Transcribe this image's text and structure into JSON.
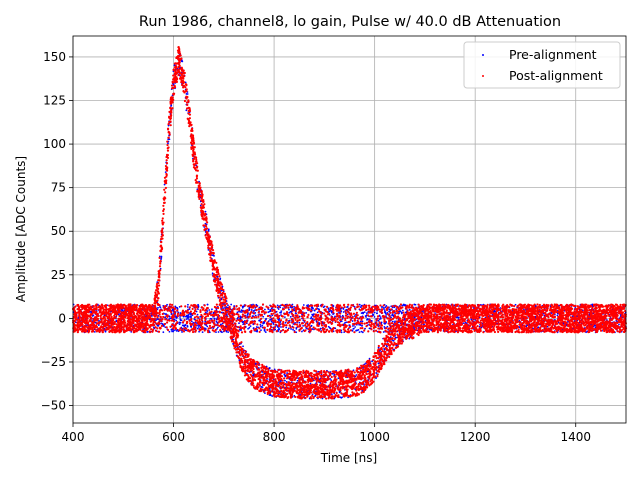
{
  "chart_data": {
    "type": "scatter",
    "title": "Run 1986, channel8, lo gain, Pulse w/ 40.0 dB Attenuation",
    "xlabel": "Time [ns]",
    "ylabel": "Amplitude [ADC Counts]",
    "xlim": [
      400,
      1500
    ],
    "ylim": [
      -60,
      162
    ],
    "xticks": [
      400,
      600,
      800,
      1000,
      1200,
      1400
    ],
    "yticks": [
      -50,
      -25,
      0,
      25,
      50,
      75,
      100,
      125,
      150
    ],
    "grid": true,
    "legend_position": "top-right",
    "series": [
      {
        "name": "Pre-alignment",
        "color": "#0000ff",
        "description_points": {
          "baseline": {
            "x_range": [
              400,
              1500
            ],
            "y_center": 0,
            "y_spread": 8
          },
          "pulse_track": {
            "x_range": [
              565,
              1080
            ],
            "y_spread": 8
          }
        }
      },
      {
        "name": "Post-alignment",
        "color": "#ff0000",
        "x": [
          400,
          560,
          570,
          580,
          590,
          600,
          610,
          620,
          630,
          640,
          650,
          660,
          670,
          680,
          690,
          700,
          710,
          720,
          730,
          740,
          760,
          780,
          800,
          840,
          880,
          920,
          960,
          980,
          1000,
          1020,
          1040,
          1060,
          1080,
          1100,
          1200,
          1300,
          1400,
          1500
        ],
        "y": [
          0,
          0,
          18,
          60,
          105,
          135,
          148,
          138,
          118,
          95,
          75,
          60,
          45,
          30,
          18,
          8,
          0,
          -8,
          -18,
          -25,
          -32,
          -35,
          -37,
          -38,
          -38,
          -38,
          -37,
          -34,
          -28,
          -18,
          -10,
          -5,
          -3,
          0,
          0,
          0,
          0,
          0
        ],
        "band_halfwidth": 8
      }
    ]
  }
}
